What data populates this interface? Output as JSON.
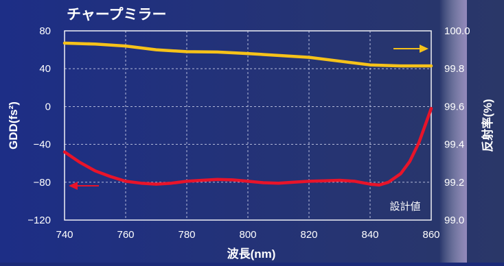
{
  "colors": {
    "background_left": "#1d2e86",
    "background_right": "#2a3768",
    "edge_glow": "#b6a3d6",
    "gdd_series": "#e8142a",
    "reflectance_series": "#f6c21a",
    "grid": "#c8cde8",
    "text": "#ffffff"
  },
  "chart_data": {
    "type": "line",
    "title": "チャープミラー",
    "xlabel": "波長(nm)",
    "ylabel_left": "GDD(fs²)",
    "ylabel_right": "反射率(%)",
    "xlim": [
      740,
      860
    ],
    "ylim_left": [
      -120,
      80
    ],
    "ylim_right": [
      99.0,
      100.0
    ],
    "x_ticks": [
      "740",
      "760",
      "780",
      "800",
      "820",
      "840",
      "860"
    ],
    "y_left_ticks": [
      "80",
      "40",
      "0",
      "−40",
      "−80",
      "−120"
    ],
    "y_right_ticks": [
      "100.0",
      "99.8",
      "99.6",
      "99.4",
      "99.2",
      "99.0"
    ],
    "grid": true,
    "annotation": "設計値",
    "series": [
      {
        "axis": "left",
        "color": "#e8142a",
        "arrow": "left",
        "x": [
          740,
          745,
          750,
          755,
          760,
          765,
          770,
          775,
          780,
          785,
          790,
          795,
          800,
          805,
          810,
          815,
          820,
          825,
          830,
          835,
          840,
          843,
          846,
          850,
          853,
          856,
          858,
          860
        ],
        "y": [
          -48,
          -59,
          -68,
          -74,
          -79,
          -81,
          -82,
          -81,
          -79,
          -78,
          -77,
          -77.5,
          -79,
          -80.5,
          -81,
          -80,
          -79,
          -78.5,
          -78,
          -79,
          -82,
          -83,
          -80,
          -71,
          -58,
          -38,
          -20,
          -2
        ]
      },
      {
        "axis": "right",
        "color": "#f6c21a",
        "arrow": "right",
        "x": [
          740,
          750,
          760,
          770,
          780,
          790,
          800,
          810,
          820,
          830,
          840,
          850,
          860
        ],
        "y": [
          99.935,
          99.93,
          99.92,
          99.9,
          99.89,
          99.888,
          99.88,
          99.87,
          99.86,
          99.84,
          99.82,
          99.815,
          99.815
        ]
      }
    ]
  }
}
